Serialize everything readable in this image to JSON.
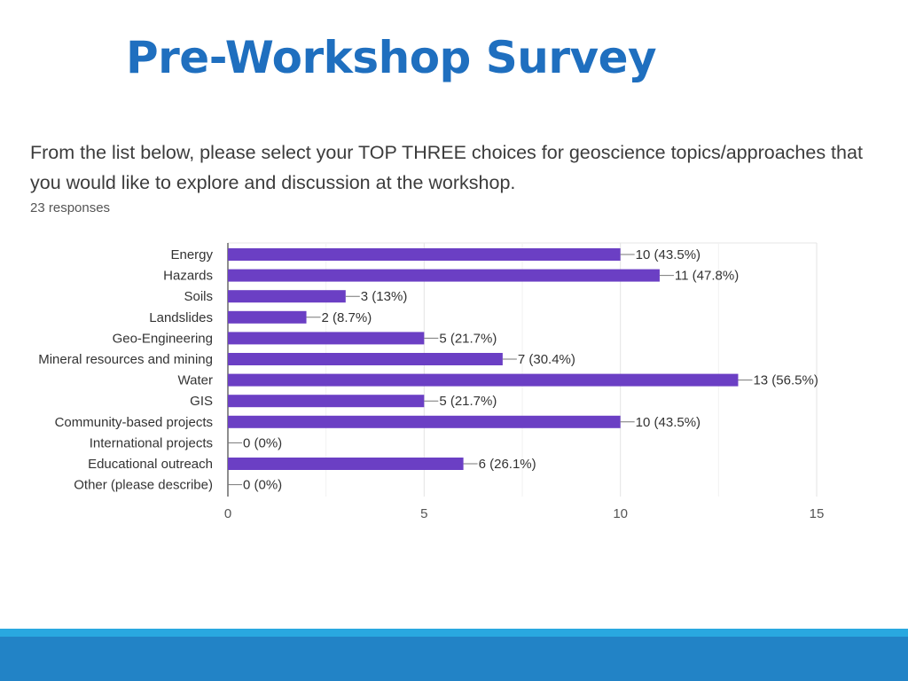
{
  "slide": {
    "title": "Pre-Workshop Survey"
  },
  "survey": {
    "question": "From the list below, please select your TOP THREE choices for geoscience topics/approaches that you would  like to explore and discussion at the workshop.",
    "responses": "23 responses"
  },
  "colors": {
    "title": "#1f6fbf",
    "bar": "#6b3fc4",
    "footer_light": "#29a8e0",
    "footer_dark": "#2283c6"
  },
  "chart_data": {
    "type": "bar",
    "orientation": "horizontal",
    "categories": [
      "Energy",
      "Hazards",
      "Soils",
      "Landslides",
      "Geo-Engineering",
      "Mineral resources and mining",
      "Water",
      "GIS",
      "Community-based projects",
      "International projects",
      "Educational outreach",
      "Other (please describe)"
    ],
    "values": [
      10,
      11,
      3,
      2,
      5,
      7,
      13,
      5,
      10,
      0,
      6,
      0
    ],
    "data_labels": [
      "10 (43.5%)",
      "11 (47.8%)",
      "3 (13%)",
      "2 (8.7%)",
      "5 (21.7%)",
      "7 (30.4%)",
      "13 (56.5%)",
      "5 (21.7%)",
      "10 (43.5%)",
      "0 (0%)",
      "6 (26.1%)",
      "0 (0%)"
    ],
    "xlim": [
      0,
      15
    ],
    "xticks": [
      0,
      5,
      10,
      15
    ],
    "xtick_labels": [
      "0",
      "5",
      "10",
      "15"
    ],
    "grid": true,
    "legend": "none"
  }
}
